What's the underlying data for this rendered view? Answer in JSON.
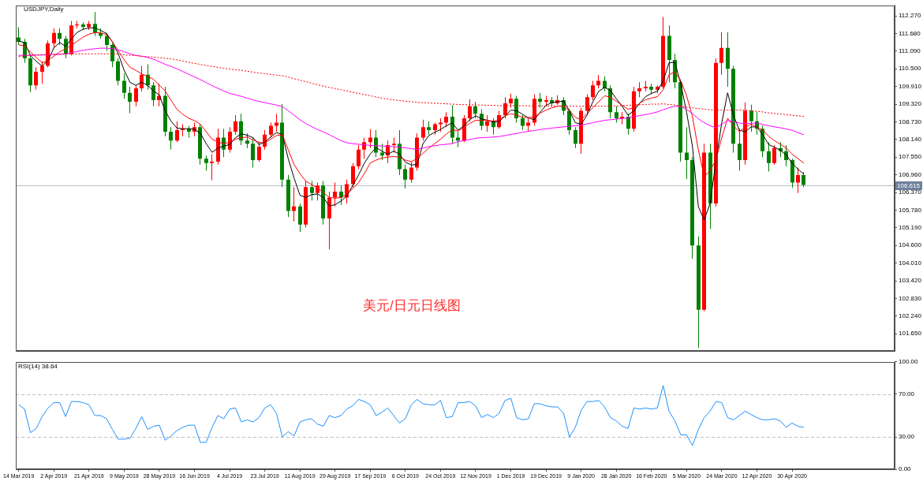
{
  "chart_data": [
    {
      "type": "candlestick",
      "title": "USDJPY,Daily",
      "categories": [
        null,
        null,
        null,
        null,
        null,
        null,
        null,
        null,
        null,
        null,
        null,
        null,
        null,
        null,
        null,
        null,
        null,
        null,
        null,
        null,
        null,
        null,
        null,
        null,
        null,
        null,
        null,
        null,
        null,
        null,
        null,
        null,
        null,
        null,
        null,
        null,
        null,
        null,
        null,
        null,
        null,
        null,
        null,
        null,
        null,
        null,
        null,
        null,
        null,
        null,
        null,
        null,
        null,
        null,
        null,
        null,
        null,
        null,
        null,
        null,
        null,
        null,
        null,
        null,
        null,
        null,
        null,
        null,
        null,
        null,
        null,
        null,
        null,
        null,
        null,
        null,
        null,
        null,
        null,
        null,
        null,
        null,
        null,
        null,
        null,
        null,
        null,
        null,
        null,
        null,
        null,
        null,
        null,
        null,
        null,
        null,
        null,
        null,
        null,
        null,
        null,
        null,
        null,
        null,
        null,
        null,
        null,
        null,
        null,
        null,
        null,
        null,
        null,
        null,
        null,
        null,
        null,
        null,
        null,
        null,
        null,
        null,
        null,
        null,
        null,
        null,
        null,
        null,
        null,
        null,
        null,
        null,
        null,
        null,
        null
      ],
      "ohlc": [
        [
          111.55,
          111.89,
          111.3,
          111.4
        ],
        [
          111.4,
          111.5,
          110.7,
          110.85
        ],
        [
          110.85,
          110.95,
          109.72,
          109.95
        ],
        [
          109.95,
          110.55,
          109.8,
          110.4
        ],
        [
          110.4,
          110.75,
          110.0,
          110.6
        ],
        [
          110.6,
          111.45,
          110.55,
          111.35
        ],
        [
          111.35,
          111.85,
          111.2,
          111.7
        ],
        [
          111.7,
          111.85,
          111.3,
          111.5
        ],
        [
          111.5,
          111.6,
          110.85,
          111.0
        ],
        [
          111.0,
          112.1,
          110.95,
          111.95
        ],
        [
          111.95,
          112.1,
          111.85,
          111.98
        ],
        [
          111.98,
          112.05,
          111.8,
          111.9
        ],
        [
          111.9,
          112.1,
          111.8,
          112.0
        ],
        [
          112.0,
          112.4,
          111.6,
          111.7
        ],
        [
          111.7,
          111.85,
          111.5,
          111.6
        ],
        [
          111.6,
          111.7,
          111.1,
          111.3
        ],
        [
          111.3,
          111.35,
          110.55,
          110.75
        ],
        [
          110.75,
          110.85,
          109.95,
          110.1
        ],
        [
          110.1,
          110.35,
          109.5,
          109.7
        ],
        [
          109.7,
          109.9,
          109.02,
          109.4
        ],
        [
          109.4,
          109.95,
          109.25,
          109.85
        ],
        [
          109.85,
          110.6,
          109.75,
          110.3
        ],
        [
          110.3,
          110.65,
          109.8,
          109.95
        ],
        [
          109.95,
          110.05,
          109.25,
          109.45
        ],
        [
          109.45,
          110.0,
          109.25,
          109.6
        ],
        [
          109.6,
          109.9,
          108.25,
          108.4
        ],
        [
          108.4,
          108.55,
          107.8,
          108.1
        ],
        [
          108.1,
          108.75,
          108.05,
          108.45
        ],
        [
          108.45,
          108.65,
          108.25,
          108.5
        ],
        [
          108.5,
          108.6,
          108.2,
          108.4
        ],
        [
          108.4,
          108.7,
          108.25,
          108.55
        ],
        [
          108.55,
          108.65,
          107.3,
          107.5
        ],
        [
          107.5,
          107.6,
          107.1,
          107.35
        ],
        [
          107.35,
          107.65,
          106.78,
          107.4
        ],
        [
          107.4,
          108.5,
          107.3,
          108.2
        ],
        [
          108.2,
          108.5,
          107.55,
          107.8
        ],
        [
          107.8,
          108.55,
          107.7,
          108.4
        ],
        [
          108.4,
          108.95,
          108.3,
          108.75
        ],
        [
          108.75,
          109.0,
          107.95,
          108.1
        ],
        [
          108.1,
          108.35,
          107.85,
          108.0
        ],
        [
          108.0,
          108.2,
          107.2,
          107.45
        ],
        [
          107.45,
          108.05,
          107.4,
          107.9
        ],
        [
          107.9,
          108.45,
          107.8,
          108.3
        ],
        [
          108.3,
          108.7,
          108.2,
          108.6
        ],
        [
          108.6,
          108.99,
          108.4,
          108.7
        ],
        [
          108.7,
          109.32,
          106.55,
          106.8
        ],
        [
          106.8,
          106.95,
          105.55,
          105.75
        ],
        [
          105.75,
          106.55,
          105.4,
          105.9
        ],
        [
          105.9,
          106.0,
          105.05,
          105.3
        ],
        [
          105.3,
          106.75,
          105.2,
          106.55
        ],
        [
          106.55,
          106.75,
          106.1,
          106.35
        ],
        [
          106.35,
          106.7,
          106.1,
          106.6
        ],
        [
          106.6,
          106.75,
          105.3,
          105.5
        ],
        [
          105.5,
          106.4,
          104.47,
          106.2
        ],
        [
          106.2,
          106.7,
          105.9,
          106.4
        ],
        [
          106.4,
          106.6,
          105.95,
          106.2
        ],
        [
          106.2,
          106.8,
          106.0,
          106.65
        ],
        [
          106.65,
          107.35,
          106.55,
          107.25
        ],
        [
          107.25,
          107.95,
          107.15,
          107.8
        ],
        [
          107.8,
          108.2,
          107.5,
          108.05
        ],
        [
          108.05,
          108.48,
          107.85,
          108.2
        ],
        [
          108.2,
          108.45,
          107.55,
          107.7
        ],
        [
          107.7,
          108.0,
          107.45,
          107.6
        ],
        [
          107.6,
          108.1,
          107.35,
          107.95
        ],
        [
          107.95,
          108.2,
          107.7,
          108.0
        ],
        [
          108.0,
          108.45,
          106.95,
          107.15
        ],
        [
          107.15,
          107.3,
          106.5,
          106.8
        ],
        [
          106.8,
          107.4,
          106.7,
          107.2
        ],
        [
          107.2,
          108.35,
          107.1,
          108.2
        ],
        [
          108.2,
          108.8,
          108.1,
          108.55
        ],
        [
          108.55,
          108.75,
          108.3,
          108.45
        ],
        [
          108.45,
          108.7,
          108.3,
          108.65
        ],
        [
          108.65,
          108.85,
          108.4,
          108.7
        ],
        [
          108.7,
          109.05,
          108.55,
          108.9
        ],
        [
          108.9,
          109.29,
          108.0,
          108.2
        ],
        [
          108.2,
          108.4,
          107.88,
          108.1
        ],
        [
          108.1,
          108.95,
          108.05,
          108.85
        ],
        [
          108.85,
          109.48,
          108.75,
          109.25
        ],
        [
          109.25,
          109.4,
          108.85,
          109.0
        ],
        [
          109.0,
          109.15,
          108.45,
          108.6
        ],
        [
          108.6,
          108.95,
          108.4,
          108.75
        ],
        [
          108.75,
          108.85,
          108.3,
          108.55
        ],
        [
          108.55,
          109.1,
          108.5,
          108.95
        ],
        [
          108.95,
          109.55,
          108.85,
          109.35
        ],
        [
          109.35,
          109.67,
          109.2,
          109.5
        ],
        [
          109.5,
          109.6,
          108.7,
          108.85
        ],
        [
          108.85,
          108.95,
          108.45,
          108.6
        ],
        [
          108.6,
          108.85,
          108.4,
          108.7
        ],
        [
          108.7,
          109.65,
          108.6,
          109.5
        ],
        [
          109.5,
          109.7,
          109.2,
          109.4
        ],
        [
          109.4,
          109.6,
          109.25,
          109.45
        ],
        [
          109.45,
          109.55,
          109.25,
          109.35
        ],
        [
          109.35,
          109.62,
          109.3,
          109.45
        ],
        [
          109.45,
          109.55,
          108.95,
          109.1
        ],
        [
          109.1,
          109.15,
          108.3,
          108.45
        ],
        [
          108.45,
          108.55,
          107.85,
          108.0
        ],
        [
          108.0,
          109.2,
          107.66,
          109.1
        ],
        [
          109.1,
          109.65,
          109.0,
          109.55
        ],
        [
          109.55,
          110.1,
          109.45,
          109.95
        ],
        [
          109.95,
          110.29,
          109.85,
          110.1
        ],
        [
          110.1,
          110.25,
          109.75,
          109.85
        ],
        [
          109.85,
          109.95,
          108.85,
          109.05
        ],
        [
          109.05,
          109.25,
          108.7,
          108.85
        ],
        [
          108.85,
          109.05,
          108.65,
          108.9
        ],
        [
          108.9,
          109.0,
          108.3,
          108.5
        ],
        [
          108.5,
          109.9,
          108.4,
          109.75
        ],
        [
          109.75,
          110.05,
          109.55,
          109.85
        ],
        [
          109.85,
          110.1,
          109.75,
          109.9
        ],
        [
          109.9,
          110.0,
          109.65,
          109.8
        ],
        [
          109.8,
          109.95,
          109.7,
          109.9
        ],
        [
          109.9,
          112.23,
          109.85,
          111.6
        ],
        [
          111.6,
          111.95,
          110.05,
          110.8
        ],
        [
          110.8,
          111.0,
          109.85,
          110.05
        ],
        [
          110.05,
          110.15,
          107.4,
          107.7
        ],
        [
          107.7,
          108.55,
          106.82,
          107.45
        ],
        [
          107.45,
          107.55,
          104.15,
          104.6
        ],
        [
          104.6,
          104.9,
          101.18,
          102.45
        ],
        [
          102.45,
          108.0,
          102.4,
          107.7
        ],
        [
          107.7,
          108.0,
          105.15,
          106.0
        ],
        [
          106.0,
          110.85,
          105.9,
          110.7
        ],
        [
          110.7,
          111.72,
          110.3,
          111.2
        ],
        [
          111.2,
          111.72,
          109.9,
          110.5
        ],
        [
          110.5,
          110.6,
          107.7,
          108.0
        ],
        [
          108.0,
          108.5,
          107.1,
          107.45
        ],
        [
          107.45,
          109.38,
          107.3,
          109.1
        ],
        [
          109.1,
          109.3,
          108.4,
          108.75
        ],
        [
          108.75,
          109.05,
          108.3,
          108.5
        ],
        [
          108.5,
          108.6,
          107.55,
          107.75
        ],
        [
          107.75,
          108.05,
          107.07,
          107.35
        ],
        [
          107.35,
          107.95,
          107.3,
          107.85
        ],
        [
          107.85,
          108.05,
          107.55,
          107.75
        ],
        [
          107.75,
          107.95,
          107.25,
          107.45
        ],
        [
          107.45,
          107.5,
          106.52,
          106.7
        ],
        [
          106.7,
          107.2,
          106.35,
          106.95
        ],
        [
          106.95,
          107.05,
          106.55,
          106.62
        ]
      ],
      "colors": [
        "#008000",
        "#008000",
        "#008000",
        "#ff0000",
        "#ff0000",
        "#ff0000",
        "#ff0000",
        "#008000",
        "#008000",
        "#ff0000",
        "#ff0000",
        "#008000",
        "#ff0000",
        "#008000",
        "#008000",
        "#008000",
        "#008000",
        "#008000",
        "#008000",
        "#008000",
        "#ff0000",
        "#ff0000",
        "#008000",
        "#008000",
        "#ff0000",
        "#008000",
        "#008000",
        "#ff0000",
        "#ff0000",
        "#008000",
        "#ff0000",
        "#008000",
        "#008000",
        "#ff0000",
        "#ff0000",
        "#008000",
        "#ff0000",
        "#ff0000",
        "#008000",
        "#008000",
        "#008000",
        "#ff0000",
        "#ff0000",
        "#ff0000",
        "#ff0000",
        "#008000",
        "#008000",
        "#ff0000",
        "#008000",
        "#ff0000",
        "#008000",
        "#ff0000",
        "#008000",
        "#ff0000",
        "#ff0000",
        "#008000",
        "#ff0000",
        "#ff0000",
        "#ff0000",
        "#ff0000",
        "#ff0000",
        "#008000",
        "#008000",
        "#ff0000",
        "#ff0000",
        "#008000",
        "#008000",
        "#ff0000",
        "#ff0000",
        "#ff0000",
        "#008000",
        "#ff0000",
        "#ff0000",
        "#ff0000",
        "#008000",
        "#008000",
        "#ff0000",
        "#ff0000",
        "#008000",
        "#008000",
        "#ff0000",
        "#008000",
        "#ff0000",
        "#ff0000",
        "#ff0000",
        "#008000",
        "#008000",
        "#ff0000",
        "#ff0000",
        "#008000",
        "#ff0000",
        "#008000",
        "#ff0000",
        "#008000",
        "#008000",
        "#008000",
        "#ff0000",
        "#ff0000",
        "#ff0000",
        "#ff0000",
        "#008000",
        "#008000",
        "#008000",
        "#ff0000",
        "#008000",
        "#ff0000",
        "#ff0000",
        "#ff0000",
        "#008000",
        "#ff0000",
        "#ff0000",
        "#008000",
        "#008000",
        "#008000",
        "#008000",
        "#008000",
        "#008000",
        "#ff0000",
        "#008000",
        "#ff0000",
        "#ff0000",
        "#008000",
        "#008000",
        "#008000",
        "#ff0000",
        "#008000",
        "#008000",
        "#008000",
        "#008000",
        "#ff0000",
        "#008000",
        "#008000",
        "#008000",
        "#ff0000",
        "#008000"
      ],
      "series": [
        {
          "type": "line",
          "color": "#000000",
          "values": [
            111.42,
            111.38,
            110.95,
            110.75,
            110.59,
            110.78,
            111.2,
            111.38,
            111.25,
            111.5,
            111.72,
            111.82,
            111.87,
            111.87,
            111.78,
            111.68,
            111.4,
            111.0,
            110.45,
            110.05,
            109.95,
            110.05,
            109.95,
            109.76,
            109.63,
            109.1,
            108.75,
            108.52,
            108.5,
            108.5,
            108.48,
            108.35,
            108.0,
            107.71,
            107.85,
            107.92,
            107.97,
            108.2,
            108.33,
            108.28,
            108.2,
            107.97,
            108.05,
            108.22,
            108.37,
            108.3,
            107.5,
            106.85,
            106.28,
            106.2,
            106.3,
            106.32,
            106.2,
            105.92,
            105.96,
            106.08,
            106.25,
            106.6,
            106.95,
            107.35,
            107.65,
            107.87,
            107.75,
            107.65,
            107.75,
            107.65,
            107.38,
            107.29,
            107.3,
            108.0,
            108.27,
            108.38,
            108.47,
            108.6,
            108.69,
            108.45,
            108.6,
            108.8,
            108.93,
            108.83,
            108.78,
            108.72,
            108.74,
            108.92,
            109.12,
            109.1,
            108.98,
            108.86,
            108.8,
            109.05,
            109.28,
            109.37,
            109.4,
            109.42,
            109.1,
            108.7,
            108.65,
            108.95,
            109.4,
            109.75,
            109.88,
            109.78,
            109.5,
            109.25,
            108.95,
            109.1,
            109.35,
            109.57,
            109.68,
            109.75,
            110.1,
            110.7,
            110.72,
            110.0,
            109.05,
            107.9,
            105.9,
            105.45,
            106.0,
            107.4,
            108.7,
            109.7,
            108.95,
            108.45,
            108.4,
            108.56,
            108.56,
            108.3,
            107.97,
            107.88,
            107.78,
            107.62,
            107.35,
            107.15,
            106.98
          ]
        },
        {
          "type": "line",
          "color": "#ff0000",
          "values": [
            111.3,
            111.27,
            111.06,
            110.88,
            110.7,
            110.78,
            110.92,
            111.07,
            111.17,
            111.29,
            111.42,
            111.56,
            111.66,
            111.71,
            111.7,
            111.64,
            111.4,
            111.1,
            110.8,
            110.55,
            110.45,
            110.33,
            110.25,
            110.15,
            109.95,
            109.76,
            109.45,
            109.15,
            108.98,
            108.85,
            108.77,
            108.65,
            108.4,
            108.15,
            108.05,
            108.01,
            108.04,
            108.15,
            108.2,
            108.22,
            108.12,
            108.05,
            108.02,
            108.15,
            108.27,
            108.3,
            107.8,
            107.3,
            107.0,
            106.75,
            106.63,
            106.53,
            106.37,
            106.2,
            106.18,
            106.2,
            106.3,
            106.5,
            106.7,
            107.0,
            107.35,
            107.45,
            107.52,
            107.55,
            107.57,
            107.55,
            107.45,
            107.4,
            107.5,
            107.68,
            107.85,
            108.0,
            108.15,
            108.32,
            108.47,
            108.42,
            108.55,
            108.68,
            108.78,
            108.78,
            108.78,
            108.75,
            108.8,
            108.93,
            109.0,
            108.95,
            108.88,
            108.87,
            108.9,
            109.02,
            109.12,
            109.2,
            109.25,
            109.25,
            109.1,
            108.88,
            108.8,
            109.0,
            109.2,
            109.4,
            109.6,
            109.55,
            109.42,
            109.28,
            109.15,
            109.2,
            109.35,
            109.47,
            109.52,
            109.57,
            109.8,
            110.3,
            110.4,
            110.1,
            109.6,
            108.9,
            107.8,
            106.9,
            107.1,
            107.45,
            108.2,
            108.85,
            108.6,
            108.4,
            108.55,
            108.65,
            108.55,
            108.45,
            108.25,
            108.1,
            107.98,
            107.85,
            107.65,
            107.5,
            107.35
          ]
        },
        {
          "type": "line",
          "color": "#ff00ff",
          "values": [
            110.95,
            110.95,
            110.95,
            110.96,
            110.96,
            110.97,
            110.98,
            110.99,
            111.0,
            111.04,
            111.08,
            111.12,
            111.15,
            111.17,
            111.19,
            111.19,
            111.17,
            111.13,
            111.07,
            111.0,
            110.95,
            110.92,
            110.88,
            110.82,
            110.74,
            110.65,
            110.58,
            110.5,
            110.41,
            110.32,
            110.23,
            110.14,
            110.04,
            109.94,
            109.85,
            109.76,
            109.68,
            109.63,
            109.58,
            109.52,
            109.46,
            109.41,
            109.37,
            109.33,
            109.29,
            109.24,
            109.1,
            108.95,
            108.8,
            108.67,
            108.57,
            108.47,
            108.39,
            108.3,
            108.2,
            108.1,
            108.03,
            108.0,
            107.98,
            107.96,
            107.94,
            107.93,
            107.92,
            107.91,
            107.9,
            107.88,
            107.86,
            107.83,
            107.81,
            107.85,
            107.9,
            107.93,
            107.96,
            107.98,
            108.0,
            108.07,
            108.1,
            108.14,
            108.18,
            108.2,
            108.21,
            108.22,
            108.24,
            108.27,
            108.31,
            108.34,
            108.38,
            108.41,
            108.44,
            108.47,
            108.5,
            108.52,
            108.54,
            108.56,
            108.58,
            108.6,
            108.62,
            108.66,
            108.7,
            108.74,
            108.78,
            108.8,
            108.82,
            108.84,
            108.86,
            108.9,
            108.94,
            108.97,
            109.01,
            109.06,
            109.13,
            109.2,
            109.25,
            109.24,
            109.15,
            109.0,
            108.83,
            108.7,
            108.6,
            108.53,
            108.65,
            108.77,
            108.74,
            108.69,
            108.67,
            108.68,
            108.69,
            108.64,
            108.6,
            108.56,
            108.53,
            108.49,
            108.45,
            108.37,
            108.3
          ]
        },
        {
          "type": "line",
          "color": "#ff0000",
          "line_style": "dotted",
          "values": [
            110.91,
            110.93,
            110.96,
            110.96,
            110.97,
            110.97,
            110.98,
            110.98,
            110.99,
            110.99,
            111.0,
            111.0,
            111.0,
            111.0,
            111.0,
            111.0,
            111.0,
            110.99,
            110.97,
            110.95,
            110.94,
            110.92,
            110.91,
            110.89,
            110.87,
            110.85,
            110.83,
            110.8,
            110.76,
            110.72,
            110.68,
            110.65,
            110.61,
            110.58,
            110.55,
            110.52,
            110.49,
            110.47,
            110.45,
            110.42,
            110.39,
            110.36,
            110.34,
            110.31,
            110.29,
            110.27,
            110.22,
            110.17,
            110.12,
            110.07,
            110.02,
            109.97,
            109.92,
            109.88,
            109.84,
            109.8,
            109.76,
            109.72,
            109.68,
            109.64,
            109.6,
            109.56,
            109.52,
            109.49,
            109.46,
            109.44,
            109.42,
            109.4,
            109.38,
            109.37,
            109.36,
            109.35,
            109.34,
            109.33,
            109.32,
            109.31,
            109.3,
            109.3,
            109.29,
            109.29,
            109.28,
            109.28,
            109.27,
            109.27,
            109.27,
            109.27,
            109.27,
            109.26,
            109.26,
            109.26,
            109.26,
            109.26,
            109.26,
            109.25,
            109.25,
            109.25,
            109.25,
            109.25,
            109.25,
            109.25,
            109.25,
            109.26,
            109.26,
            109.27,
            109.28,
            109.29,
            109.3,
            109.31,
            109.32,
            109.32,
            109.33,
            109.31,
            109.29,
            109.26,
            109.22,
            109.2,
            109.17,
            109.15,
            109.13,
            109.12,
            109.12,
            109.12,
            109.12,
            109.12,
            109.12,
            109.1,
            109.08,
            109.06,
            109.03,
            109.01,
            108.99,
            108.97,
            108.95,
            108.93,
            108.91
          ]
        }
      ],
      "ylim": [
        101.07,
        112.62
      ],
      "yticks": [
        {
          "value": 112.27,
          "label": "112.270"
        },
        {
          "value": 111.68,
          "label": "111.680"
        },
        {
          "value": 111.09,
          "label": "111.090"
        },
        {
          "value": 110.5,
          "label": "110.500"
        },
        {
          "value": 109.91,
          "label": "109.910"
        },
        {
          "value": 109.32,
          "label": "109.320"
        },
        {
          "value": 108.73,
          "label": "108.730"
        },
        {
          "value": 108.14,
          "label": "108.140"
        },
        {
          "value": 107.55,
          "label": "107.550"
        },
        {
          "value": 106.96,
          "label": "106.960"
        },
        {
          "value": 106.37,
          "label": "106.370"
        },
        {
          "value": 105.78,
          "label": "105.780"
        },
        {
          "value": 105.19,
          "label": "105.190"
        },
        {
          "value": 104.6,
          "label": "104.600"
        },
        {
          "value": 104.01,
          "label": "104.010"
        },
        {
          "value": 103.42,
          "label": "103.420"
        },
        {
          "value": 102.83,
          "label": "102.830"
        },
        {
          "value": 102.24,
          "label": "102.240"
        },
        {
          "value": 101.65,
          "label": "101.650"
        }
      ],
      "ref_lines": [
        {
          "axis": "y",
          "value": 106.615,
          "label": "106.615",
          "color": "#b8bec8"
        }
      ],
      "annotations": [
        "美元/日元日线图"
      ],
      "tick_labels": "y"
    },
    {
      "type": "line",
      "title": "RSI(14) 38.64",
      "categories": [
        "14 Mar 2019",
        null,
        null,
        null,
        null,
        null,
        "2 Apr 2019",
        null,
        null,
        null,
        null,
        null,
        "21 Apr 2019",
        null,
        null,
        null,
        null,
        null,
        "9 May 2019",
        null,
        null,
        null,
        null,
        null,
        "28 May 2019",
        null,
        null,
        null,
        null,
        null,
        "16 Jun 2019",
        null,
        null,
        null,
        null,
        null,
        "4 Jul 2019",
        null,
        null,
        null,
        null,
        null,
        "23 Jul 2019",
        null,
        null,
        null,
        null,
        null,
        "11 Aug 2019",
        null,
        null,
        null,
        null,
        null,
        "29 Aug 2019",
        null,
        null,
        null,
        null,
        null,
        "17 Sep 2019",
        null,
        null,
        null,
        null,
        null,
        "6 Oct 2019",
        null,
        null,
        null,
        null,
        null,
        "24 Oct 2019",
        null,
        null,
        null,
        null,
        null,
        "12 Nov 2019",
        null,
        null,
        null,
        null,
        null,
        "1 Dec 2019",
        null,
        null,
        null,
        null,
        null,
        "19 Dec 2019",
        null,
        null,
        null,
        null,
        null,
        "9 Jan 2020",
        null,
        null,
        null,
        null,
        null,
        "28 Jan 2020",
        null,
        null,
        null,
        null,
        null,
        "16 Feb 2020",
        null,
        null,
        null,
        null,
        null,
        "5 Mar 2020",
        null,
        null,
        null,
        null,
        null,
        "24 Mar 2020",
        null,
        null,
        null,
        null,
        null,
        "12 Apr 2020",
        null,
        null,
        null,
        null,
        null,
        "30 Apr 2020",
        null,
        null
      ],
      "values": [
        60,
        56,
        34,
        38,
        49,
        57,
        62,
        62,
        49,
        63,
        63,
        62,
        60,
        50,
        50,
        47,
        37,
        28,
        28,
        29,
        38,
        49,
        37,
        40,
        41,
        27,
        31,
        36,
        39,
        41,
        41,
        25,
        25,
        39,
        50,
        47,
        56,
        57,
        44,
        46,
        44,
        48,
        57,
        60,
        52,
        30,
        35,
        31,
        44,
        46,
        47,
        42,
        40,
        50,
        48,
        50,
        56,
        59,
        65,
        63,
        60,
        50,
        53,
        57,
        50,
        43,
        47,
        60,
        65,
        61,
        60,
        60,
        64,
        48,
        49,
        62,
        62,
        63,
        59,
        48,
        51,
        48,
        52,
        64,
        66,
        48,
        46,
        47,
        61,
        61,
        59,
        58,
        58,
        52,
        30,
        39,
        55,
        63,
        63,
        64,
        58,
        48,
        45,
        40,
        38,
        57,
        56,
        57,
        56,
        57,
        78,
        54,
        45,
        32,
        32,
        22,
        37,
        48,
        54,
        63,
        62,
        48,
        46,
        50,
        54,
        51,
        48,
        46,
        46,
        47,
        45,
        39,
        43,
        40,
        39
      ],
      "color": "#1e90ff",
      "ylim": [
        0,
        100
      ],
      "yticks": [
        {
          "value": 0,
          "label": "0.00"
        },
        {
          "value": 30,
          "label": "30.00"
        },
        {
          "value": 70,
          "label": "70.00"
        },
        {
          "value": 100,
          "label": "100.00"
        }
      ],
      "ref_lines": [
        {
          "axis": "y",
          "value": 70,
          "color": "#c0c0c0",
          "line_style": "dashed"
        },
        {
          "axis": "y",
          "value": 30,
          "color": "#c0c0c0",
          "line_style": "dashed"
        }
      ]
    }
  ]
}
